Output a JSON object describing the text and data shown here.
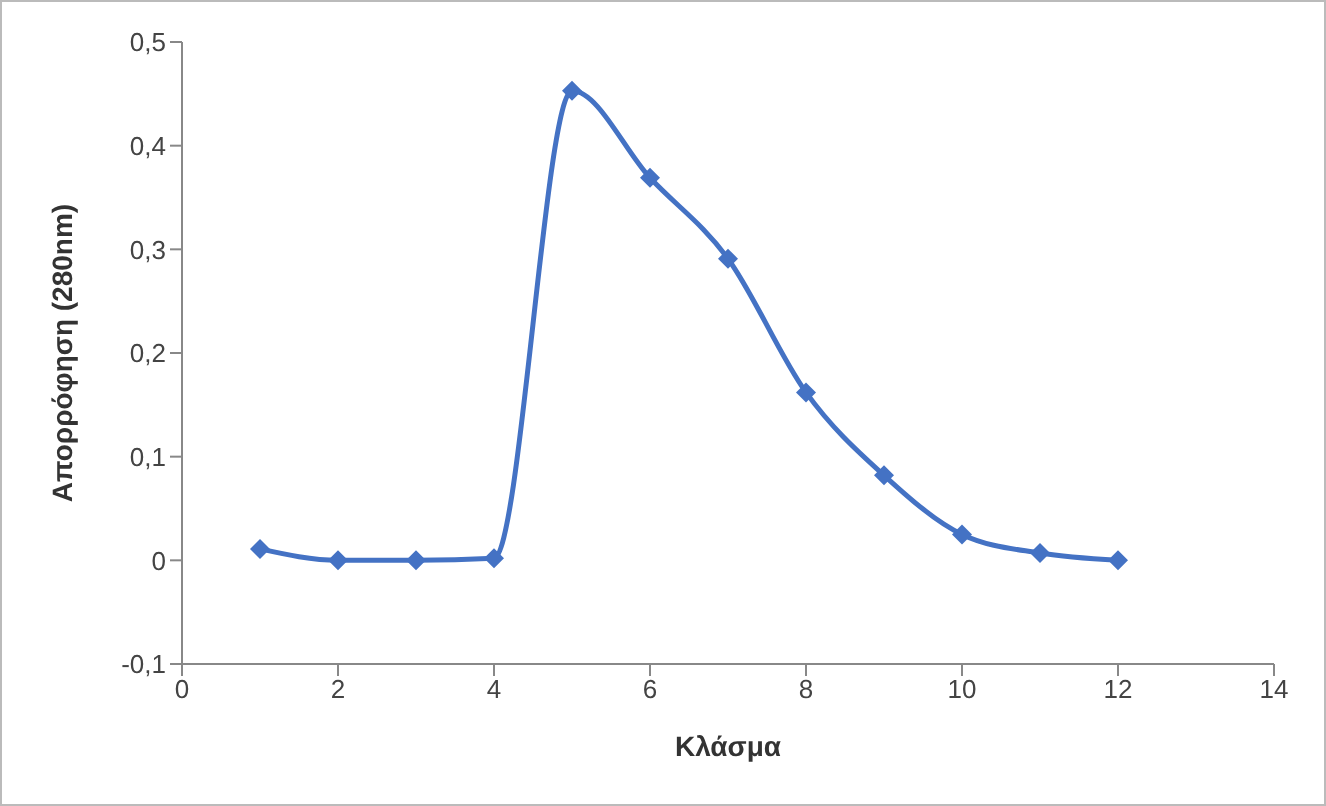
{
  "chart_data": {
    "type": "line",
    "xlabel": "Κλάσμα",
    "ylabel": "Απορρόφηση (280nm)",
    "x": [
      1,
      2,
      3,
      4,
      5,
      6,
      7,
      8,
      9,
      10,
      11,
      12
    ],
    "series": [
      {
        "color": "#4472c4",
        "values": [
          0.011,
          0,
          0,
          0.002,
          0.453,
          0.369,
          0.291,
          0.162,
          0.082,
          0.025,
          0.007,
          0
        ]
      }
    ],
    "xlim": [
      0,
      14
    ],
    "xticks": [
      0,
      2,
      4,
      6,
      8,
      10,
      12,
      14
    ],
    "ylim": [
      -0.1,
      0.5
    ],
    "yticks": [
      {
        "value": -0.1,
        "label": "-0,1"
      },
      0,
      {
        "value": 0.1,
        "label": "0,1"
      },
      {
        "value": 0.2,
        "label": "0,2"
      },
      {
        "value": 0.3,
        "label": "0,3"
      },
      {
        "value": 0.4,
        "label": "0,4"
      },
      {
        "value": 0.5,
        "label": "0,5"
      }
    ],
    "grid": false,
    "legend": false,
    "marker": "diamond",
    "line_style": "solid"
  }
}
